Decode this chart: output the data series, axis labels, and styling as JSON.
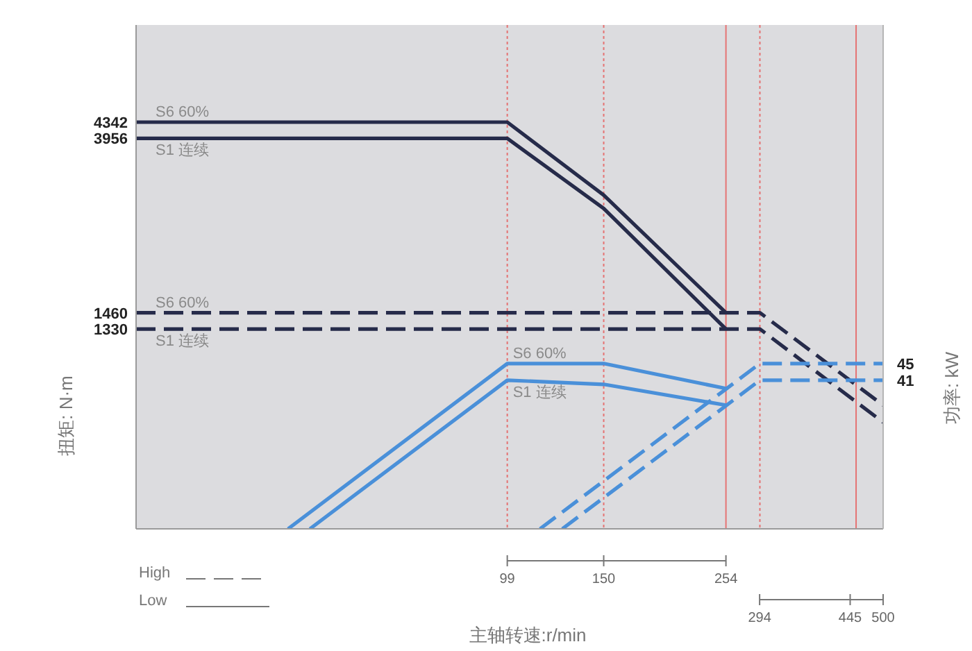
{
  "chart_data": {
    "type": "line",
    "xlabel": "主轴转速:r/min",
    "ylabel": "扭矩: N·m",
    "y2label": "功率: kW",
    "log": "xy",
    "grid": false,
    "xlim": [
      20,
      500
    ],
    "xticks": [
      99,
      150,
      254
    ],
    "x2lim": [
      -746,
      500
    ],
    "x2ticks": [
      294,
      445,
      500
    ],
    "ylim": [
      424,
      7570
    ],
    "yticks": [
      4342,
      3956,
      1460,
      1330
    ],
    "y2lim": [
      5.3,
      126.3
    ],
    "y2ticks": [
      45,
      41
    ],
    "series": [
      {
        "name": "S6 60%",
        "color": "#262b4a",
        "line_style": "dashed",
        "x": [
          20,
          294,
          500
        ],
        "values": [
          1460,
          1460,
          860
        ]
      },
      {
        "name": "S1 连续",
        "color": "#262b4a",
        "line_style": "dashed",
        "x": [
          20,
          294,
          500
        ],
        "values": [
          1330,
          1330,
          780
        ]
      },
      {
        "name": "S6 60%",
        "color": "#262b4a",
        "line_style": "solid",
        "x": [
          20,
          99,
          150,
          254
        ],
        "values": [
          4342,
          4342,
          2860,
          1460
        ]
      },
      {
        "name": "S1 连续",
        "color": "#262b4a",
        "line_style": "solid",
        "x": [
          20,
          99,
          150,
          254
        ],
        "values": [
          3956,
          3956,
          2650,
          1330
        ]
      },
      {
        "name": "S6 60%",
        "color": "#4a90d9",
        "line_style": "solid",
        "axis": "y2",
        "x": [
          38.5,
          99,
          150,
          254
        ],
        "values": [
          5.3,
          45,
          45,
          39
        ]
      },
      {
        "name": "S1 连续",
        "color": "#4a90d9",
        "line_style": "solid",
        "axis": "y2",
        "x": [
          42.3,
          99,
          150,
          254
        ],
        "values": [
          5.3,
          41,
          40,
          35
        ]
      },
      {
        "color": "#4a90d9",
        "line_style": "dashed",
        "axis": "y2",
        "x": [
          114,
          294,
          500
        ],
        "values": [
          5.3,
          45,
          45
        ]
      },
      {
        "color": "#4a90d9",
        "line_style": "dashed",
        "axis": "y2",
        "x": [
          125.5,
          294,
          500
        ],
        "values": [
          5.3,
          41,
          41
        ]
      }
    ],
    "ref_lines": [
      {
        "axis": "x",
        "value": 99,
        "color": "#e57373",
        "line_style": "dotted"
      },
      {
        "axis": "x",
        "value": 150,
        "color": "#e57373",
        "line_style": "dotted"
      },
      {
        "axis": "x",
        "value": 254,
        "color": "#e57373",
        "line_style": "solid"
      },
      {
        "axis": "x",
        "value": 294,
        "color": "#e57373",
        "line_style": "dotted"
      },
      {
        "axis": "x",
        "value": 445,
        "color": "#e57373",
        "line_style": "solid"
      }
    ],
    "annotations": [
      "High",
      "Low"
    ]
  }
}
